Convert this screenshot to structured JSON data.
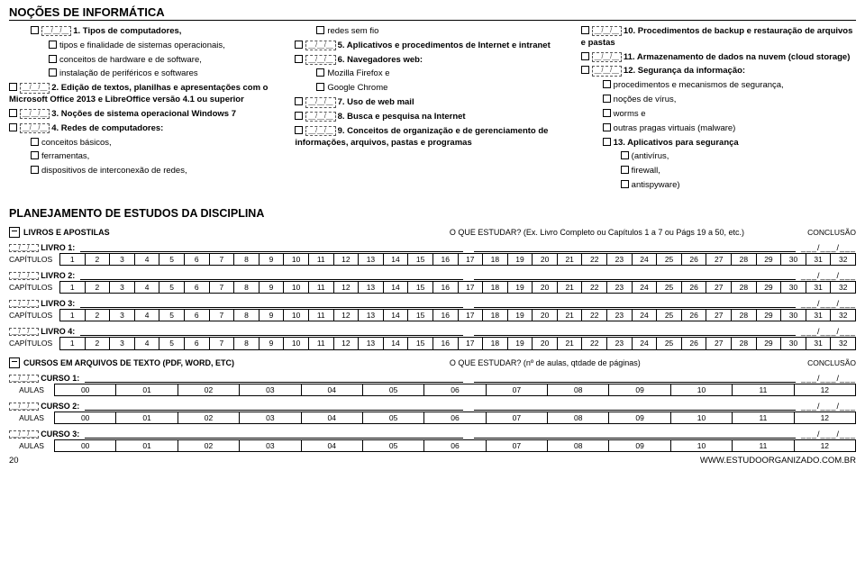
{
  "title": "NOÇÕES DE INFORMÁTICA",
  "col1": {
    "i1": "1. Tipos de computadores,",
    "i1a": "tipos e finalidade de sistemas operacionais,",
    "i1b": "conceitos de hardware e de software,",
    "i1c": "instalação de periféricos e softwares",
    "i2": "2. Edição de textos, planilhas e apresentações com o Microsoft Office 2013 e LibreOffice versão 4.1 ou superior",
    "i3": "3. Noções de sistema operacional Windows 7",
    "i4": "4. Redes de computadores:",
    "i4a": "conceitos básicos,",
    "i4b": "ferramentas,",
    "i4c": "dispositivos de interconexão de redes,"
  },
  "col2": {
    "i4d": "redes sem fio",
    "i5": "5. Aplicativos e procedimentos de Internet e intranet",
    "i6": "6. Navegadores web:",
    "i6a": "Mozilla Firefox e",
    "i6b": "Google Chrome",
    "i7": "7. Uso de web mail",
    "i8": "8. Busca e pesquisa na Internet",
    "i9": "9. Conceitos de organização e de gerenciamento de informações, arquivos, pastas e programas"
  },
  "col3": {
    "i10": "10. Procedimentos de backup e restauração de arquivos e pastas",
    "i11": "11. Armazenamento de dados na nuvem (cloud storage)",
    "i12": "12. Segurança da informação:",
    "i12a": "procedimentos e mecanismos de segurança,",
    "i12b": "noções de vírus,",
    "i12c": "worms e",
    "i12d": "outras pragas virtuais (malware)",
    "i13": "13. Aplicativos para segurança",
    "i13a": "(antivírus,",
    "i13b": "firewall,",
    "i13c": "antispyware)"
  },
  "planning": {
    "title": "PLANEJAMENTO DE ESTUDOS DA DISCIPLINA",
    "books_header": "LIVROS E APOSTILAS",
    "estudar_hint": "O QUE ESTUDAR? (Ex. Livro Completo ou Capítulos 1 a 7 ou Págs 19 a 50, etc.)",
    "conclusao": "CONCLUSÃO",
    "livro_labels": [
      "LIVRO 1:",
      "LIVRO 2:",
      "LIVRO 3:",
      "LIVRO 4:"
    ],
    "capitulos_label": "CAPÍTULOS",
    "chapters": [
      "1",
      "2",
      "3",
      "4",
      "5",
      "6",
      "7",
      "8",
      "9",
      "10",
      "11",
      "12",
      "13",
      "14",
      "15",
      "16",
      "17",
      "18",
      "19",
      "20",
      "21",
      "22",
      "23",
      "24",
      "25",
      "26",
      "27",
      "28",
      "29",
      "30",
      "31",
      "32"
    ],
    "cursos_header": "CURSOS EM ARQUIVOS DE TEXTO (PDF, WORD, ETC)",
    "cursos_hint": "O QUE ESTUDAR? (nº de aulas, qtdade de páginas)",
    "curso_labels": [
      "CURSO 1:",
      "CURSO 2:",
      "CURSO 3:"
    ],
    "aulas_label": "AULAS",
    "aulas": [
      "00",
      "01",
      "02",
      "03",
      "04",
      "05",
      "06",
      "07",
      "08",
      "09",
      "10",
      "11",
      "12"
    ],
    "date": "___/___/___"
  },
  "footer": {
    "page": "20",
    "site": "WWW.ESTUDOORGANIZADO.COM.BR"
  }
}
